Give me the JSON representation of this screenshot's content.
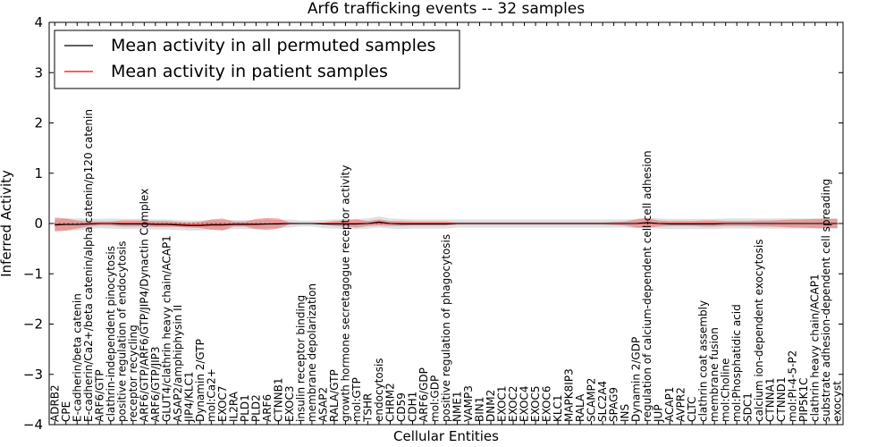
{
  "chart_data": {
    "type": "line",
    "title": "Arf6 trafficking events -- 32 samples",
    "xlabel": "Cellular Entities",
    "ylabel": "Inferred Activity",
    "ylim": [
      -4,
      4
    ],
    "yticks": [
      -4,
      -3,
      -2,
      -1,
      0,
      1,
      2,
      3,
      4
    ],
    "ytick_labels": [
      "−4",
      "−3",
      "−2",
      "−1",
      "0",
      "1",
      "2",
      "3",
      "4"
    ],
    "legend_position": "top-left",
    "categories": [
      "ADRB2",
      "CPE",
      "E-cadherin/beta catenin",
      "E-cadherin/Ca2+/beta catenin/alpha catenin/p120 catenin",
      "ARF6/GTP",
      "clathrin-independent pinocytosis",
      "positive regulation of endocytosis",
      "receptor recycling",
      "ARF6/GTP/ARF6/GTP/JIP4/Dynactin Complex",
      "ARF6/GTP/JIP3",
      "GLUT4/clathrin heavy chain/ACAP1",
      "ASAP2/amphiphysin II",
      "JIP4/KLC1",
      "Dynamin 2/GTP",
      "mol:Ca2+",
      "EXOC7",
      "IL2RA",
      "PLD1",
      "PLD2",
      "ARF6",
      "CTNNB1",
      "EXOC3",
      "insulin receptor binding",
      "membrane depolarization",
      "ASAP2",
      "RALA/GTP",
      "growth hormone secretagogue receptor activity",
      "mol:GTP",
      "TSHR",
      "endocytosis",
      "CHRM2",
      "CD59",
      "CDH1",
      "ARF6/GDP",
      "mol:GDP",
      "positive regulation of phagocytosis",
      "NME1",
      "VAMP3",
      "BIN1",
      "DNM2",
      "EXOC1",
      "EXOC2",
      "EXOC4",
      "EXOC5",
      "EXOC6",
      "KLC1",
      "MAPK8IP3",
      "RALA",
      "SCAMP2",
      "SLC2A4",
      "SPAG9",
      "INS",
      "Dynamin 2/GDP",
      "regulation of calcium-dependent cell-cell adhesion",
      "JUP",
      "ACAP1",
      "AVPR2",
      "CLTC",
      "clathrin coat assembly",
      "membrane fusion",
      "mol:Choline",
      "mol:Phosphatidic acid",
      "SDC1",
      "calcium ion-dependent exocytosis",
      "CTNNA1",
      "CTNND1",
      "mol:PI-4-5-P2",
      "PIP5K1C",
      "clathrin heavy chain/ACAP1",
      "substrate adhesion-dependent cell spreading",
      "exocyst"
    ],
    "series": [
      {
        "name": "Mean activity in all permuted samples",
        "color": "#000000",
        "values": [
          -0.03,
          -0.02,
          -0.02,
          -0.01,
          0.0,
          0.0,
          -0.01,
          -0.01,
          -0.01,
          -0.02,
          -0.02,
          -0.03,
          -0.04,
          -0.04,
          -0.03,
          -0.03,
          -0.02,
          -0.02,
          -0.02,
          -0.01,
          -0.01,
          0.0,
          0.0,
          0.0,
          -0.01,
          -0.01,
          -0.01,
          -0.01,
          0.0,
          0.03,
          0.0,
          -0.01,
          -0.01,
          -0.01,
          -0.01,
          -0.01,
          0.0,
          0.0,
          0.0,
          0.0,
          0.0,
          0.0,
          0.0,
          0.0,
          0.0,
          0.0,
          0.0,
          0.0,
          0.0,
          0.0,
          0.0,
          0.0,
          0.0,
          0.02,
          0.0,
          -0.01,
          -0.01,
          -0.01,
          -0.01,
          -0.01,
          0.0,
          0.0,
          0.0,
          0.0,
          0.0,
          0.0,
          0.0,
          0.0,
          0.0,
          0.0,
          0.0
        ],
        "spread": [
          0.11,
          0.12,
          0.12,
          0.1,
          0.09,
          0.1,
          0.1,
          0.1,
          0.1,
          0.1,
          0.1,
          0.1,
          0.1,
          0.1,
          0.1,
          0.1,
          0.09,
          0.09,
          0.09,
          0.09,
          0.08,
          0.08,
          0.06,
          0.06,
          0.08,
          0.09,
          0.1,
          0.1,
          0.1,
          0.11,
          0.1,
          0.1,
          0.09,
          0.09,
          0.09,
          0.09,
          0.08,
          0.08,
          0.08,
          0.08,
          0.08,
          0.08,
          0.08,
          0.08,
          0.08,
          0.08,
          0.08,
          0.08,
          0.08,
          0.08,
          0.08,
          0.08,
          0.09,
          0.1,
          0.1,
          0.1,
          0.1,
          0.1,
          0.1,
          0.1,
          0.1,
          0.1,
          0.1,
          0.1,
          0.1,
          0.1,
          0.1,
          0.1,
          0.1,
          0.1,
          0.1
        ]
      },
      {
        "name": "Mean activity in patient samples",
        "color": "#ff0000",
        "values": [
          -0.02,
          -0.02,
          -0.02,
          -0.01,
          0.0,
          0.0,
          0.0,
          0.0,
          0.0,
          -0.01,
          -0.01,
          -0.02,
          -0.03,
          -0.03,
          -0.02,
          -0.02,
          -0.01,
          -0.01,
          -0.01,
          -0.01,
          0.0,
          0.0,
          0.0,
          0.0,
          0.0,
          0.0,
          0.0,
          0.0,
          0.0,
          0.02,
          0.0,
          0.0,
          0.0,
          0.0,
          0.0,
          0.0,
          0.0,
          0.0,
          0.0,
          0.0,
          0.0,
          0.0,
          0.0,
          0.0,
          0.0,
          0.0,
          0.0,
          0.0,
          0.0,
          0.0,
          0.0,
          0.0,
          0.0,
          0.01,
          0.0,
          0.0,
          0.0,
          0.0,
          0.0,
          0.0,
          0.0,
          0.0,
          0.0,
          0.0,
          0.0,
          0.0,
          0.0,
          0.0,
          0.0,
          0.0,
          0.0
        ],
        "spread": [
          0.14,
          0.12,
          0.08,
          0.05,
          0.04,
          0.04,
          0.06,
          0.06,
          0.06,
          0.06,
          0.06,
          0.05,
          0.05,
          0.06,
          0.1,
          0.12,
          0.05,
          0.05,
          0.1,
          0.12,
          0.1,
          0.02,
          0.01,
          0.01,
          0.02,
          0.05,
          0.06,
          0.08,
          0.05,
          0.06,
          0.05,
          0.05,
          0.04,
          0.04,
          0.04,
          0.04,
          0.02,
          0.02,
          0.02,
          0.02,
          0.02,
          0.02,
          0.02,
          0.02,
          0.02,
          0.02,
          0.02,
          0.02,
          0.02,
          0.02,
          0.03,
          0.04,
          0.08,
          0.1,
          0.06,
          0.05,
          0.05,
          0.05,
          0.06,
          0.06,
          0.05,
          0.05,
          0.05,
          0.06,
          0.06,
          0.07,
          0.08,
          0.08,
          0.09,
          0.09,
          0.09
        ]
      }
    ]
  }
}
